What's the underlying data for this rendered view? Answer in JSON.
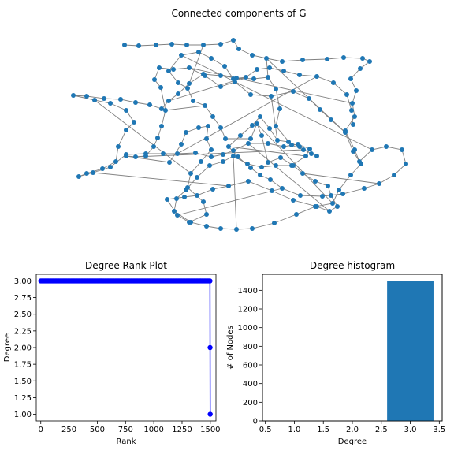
{
  "chart_data": [
    {
      "type": "network",
      "title": "Connected components of G",
      "node_color": "#1f77b4",
      "edge_color": "#808080"
    },
    {
      "type": "line",
      "title": "Degree Rank Plot",
      "xlabel": "Rank",
      "ylabel": "Degree",
      "marker": "o",
      "color": "#0000ff",
      "xlim": [
        -40,
        1550
      ],
      "ylim": [
        0.9,
        3.1
      ],
      "xticks": [
        "0",
        "250",
        "500",
        "750",
        "1000",
        "1250",
        "1500"
      ],
      "yticks": [
        "1.00",
        "1.25",
        "1.50",
        "1.75",
        "2.00",
        "2.25",
        "2.50",
        "2.75",
        "3.00"
      ],
      "points": [
        {
          "x": 0,
          "y": 3
        },
        {
          "x": 1497,
          "y": 3
        },
        {
          "x": 1498,
          "y": 2
        },
        {
          "x": 1499,
          "y": 1
        }
      ]
    },
    {
      "type": "bar",
      "title": "Degree histogram",
      "xlabel": "Degree",
      "ylabel": "# of Nodes",
      "color": "#1f77b4",
      "categories": [
        3
      ],
      "values": [
        1497
      ],
      "bar_width": 0.8,
      "xlim": [
        0.45,
        3.55
      ],
      "ylim": [
        0,
        1572
      ],
      "xticks": [
        "0.5",
        "1.0",
        "1.5",
        "2.0",
        "2.5",
        "3.0",
        "3.5"
      ],
      "yticks": [
        "0",
        "200",
        "400",
        "600",
        "800",
        "1000",
        "1200",
        "1400"
      ]
    }
  ]
}
